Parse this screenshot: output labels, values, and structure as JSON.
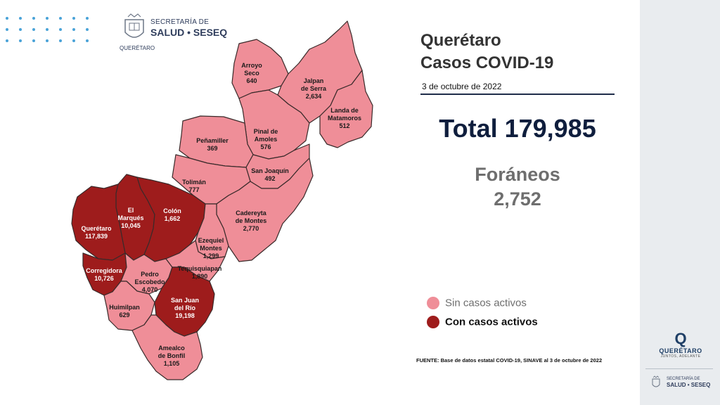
{
  "header": {
    "org_line1": "SECRETARÍA DE",
    "org_line2": "SALUD • SESEQ",
    "org_line3": "QUERÉTARO"
  },
  "title": {
    "line1": "Querétaro",
    "line2": "Casos COVID-19",
    "date": "3 de octubre de 2022"
  },
  "total": {
    "text": "Total 179,985"
  },
  "foraneos": {
    "label": "Foráneos",
    "value": "2,752"
  },
  "legend": {
    "inactive": {
      "label": "Sin casos activos",
      "color": "#ef8e98"
    },
    "active": {
      "label": "Con casos activos",
      "color": "#9e1c1c"
    }
  },
  "colors": {
    "inactive_fill": "#ef8e98",
    "active_fill": "#9e1c1c",
    "border": "#3a2a2a",
    "title_text": "#333333",
    "total_text": "#0f1e3d",
    "foraneos_text": "#6e6e6e",
    "accent_dots": "#4aa3d8"
  },
  "municipalities": [
    {
      "name": "Arroyo Seco",
      "lines": [
        "Arroyo",
        "Seco"
      ],
      "cases": "640",
      "active": false
    },
    {
      "name": "Jalpan de Serra",
      "lines": [
        "Jalpan",
        "de Serra"
      ],
      "cases": "2,634",
      "active": false
    },
    {
      "name": "Landa de Matamoros",
      "lines": [
        "Landa de",
        "Matamoros"
      ],
      "cases": "512",
      "active": false
    },
    {
      "name": "Pinal de Amoles",
      "lines": [
        "Pinal de",
        "Amoles"
      ],
      "cases": "576",
      "active": false
    },
    {
      "name": "Peñamiller",
      "lines": [
        "Peñamiller"
      ],
      "cases": "369",
      "active": false
    },
    {
      "name": "San Joaquín",
      "lines": [
        "San Joaquín"
      ],
      "cases": "492",
      "active": false
    },
    {
      "name": "Tolimán",
      "lines": [
        "Tolimán"
      ],
      "cases": "777",
      "active": false
    },
    {
      "name": "Cadereyta de Montes",
      "lines": [
        "Cadereyta",
        "de Montes"
      ],
      "cases": "2,770",
      "active": false
    },
    {
      "name": "El Marqués",
      "lines": [
        "El",
        "Marqués"
      ],
      "cases": "10,045",
      "active": true
    },
    {
      "name": "Colón",
      "lines": [
        "Colón"
      ],
      "cases": "1,662",
      "active": true
    },
    {
      "name": "Querétaro",
      "lines": [
        "Querétaro"
      ],
      "cases": "117,839",
      "active": true
    },
    {
      "name": "Ezequiel Montes",
      "lines": [
        "Ezequiel",
        "Montes"
      ],
      "cases": "1,299",
      "active": false
    },
    {
      "name": "Corregidora",
      "lines": [
        "Corregidora"
      ],
      "cases": "10,726",
      "active": true
    },
    {
      "name": "Pedro Escobedo",
      "lines": [
        "Pedro",
        "Escobedo"
      ],
      "cases": "4,070",
      "active": false
    },
    {
      "name": "Tequisquiapan",
      "lines": [
        "Tequisquiapan"
      ],
      "cases": "1,890",
      "active": false
    },
    {
      "name": "Huimilpan",
      "lines": [
        "Huimilpan"
      ],
      "cases": "629",
      "active": false
    },
    {
      "name": "San Juan del Río",
      "lines": [
        "San Juan",
        "del Río"
      ],
      "cases": "19,198",
      "active": true
    },
    {
      "name": "Amealco de Bonfil",
      "lines": [
        "Amealco",
        "de Bonfil"
      ],
      "cases": "1,105",
      "active": false
    }
  ],
  "source": "FUENTE: Base de datos estatal  COVID-19,  SINAVE  al 3 de octubre de 2022",
  "sidebar": {
    "brand": "QUERÉTARO",
    "brand_sub": "JUNTOS, ADELANTE",
    "org_line1": "SECRETARÍA DE",
    "org_line2": "SALUD • SESEQ"
  }
}
